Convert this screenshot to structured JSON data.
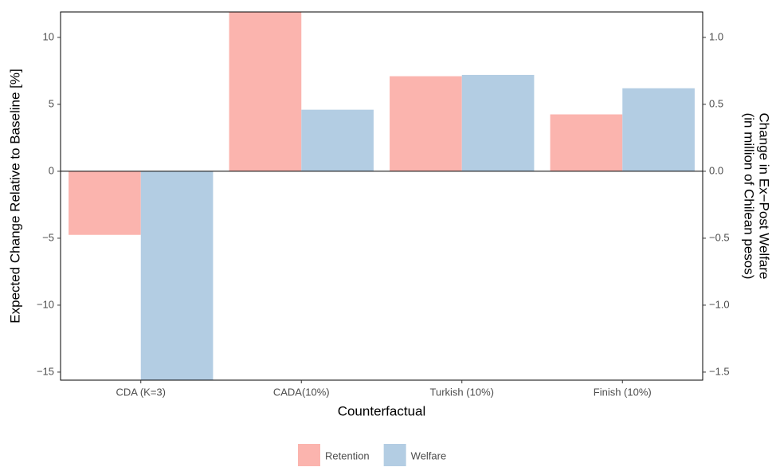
{
  "chart_data": {
    "type": "bar",
    "xlabel": "Counterfactual",
    "ylabel": "Expected Change Relative to Baseline [%]",
    "y2label": [
      "Change in Ex−Post Welfare",
      "(in million of Chilean pesos)"
    ],
    "categories": [
      "CDA (K=3)",
      "CADA(10%)",
      "Turkish (10%)",
      "Finish (10%)"
    ],
    "series": [
      {
        "name": "Retention",
        "color": "#fbb4ae",
        "values": [
          -4.75,
          11.9,
          7.1,
          4.25
        ]
      },
      {
        "name": "Welfare",
        "color": "#b3cde3",
        "axis": "y2",
        "values": [
          -1.56,
          0.46,
          0.72,
          0.62
        ]
      }
    ],
    "ylim": [
      -15.6,
      11.9
    ],
    "yticks": [
      {
        "value": -15,
        "label": "−15"
      },
      {
        "value": -10,
        "label": "−10"
      },
      {
        "value": -5,
        "label": "−5"
      },
      0,
      5,
      10
    ],
    "y2lim": [
      -1.56,
      1.19
    ],
    "y2ticks": [
      {
        "value": -1.5,
        "label": "−1.5"
      },
      {
        "value": -1.0,
        "label": "−1.0"
      },
      {
        "value": -0.5,
        "label": "−0.5"
      },
      {
        "value": 0,
        "label": "0.0"
      },
      {
        "value": 0.5,
        "label": "0.5"
      },
      {
        "value": 1.0,
        "label": "1.0"
      }
    ],
    "legend": "bottom"
  }
}
